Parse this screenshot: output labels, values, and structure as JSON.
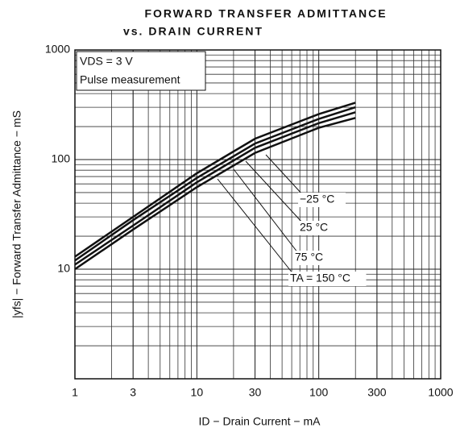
{
  "chart_data": {
    "type": "line",
    "title": "FORWARD TRANSFER ADMITTANCE",
    "subtitle": "vs. DRAIN CURRENT",
    "x_label": "ID − Drain Current − mA",
    "y_label": "|yfs| − Forward Transfer Admittance − mS",
    "annotations": [
      "VDS = 3 V",
      "Pulse measurement"
    ],
    "x": [
      1,
      3,
      10,
      30,
      100,
      200
    ],
    "series": [
      {
        "name": "−25 °C",
        "color": "#111111",
        "values": [
          13,
          30,
          75,
          155,
          260,
          330
        ]
      },
      {
        "name": "25 °C",
        "color": "#111111",
        "values": [
          12,
          28,
          68,
          140,
          235,
          300
        ]
      },
      {
        "name": "75 °C",
        "color": "#111111",
        "values": [
          11,
          25,
          62,
          128,
          215,
          270
        ]
      },
      {
        "name": "TA = 150 °C",
        "color": "#111111",
        "values": [
          10,
          23,
          56,
          115,
          195,
          240
        ]
      }
    ],
    "xlim": [
      1,
      1000
    ],
    "ylim": [
      1,
      1000
    ],
    "xticks": [
      1,
      3,
      10,
      30,
      100,
      300,
      1000
    ],
    "yticks": [
      10,
      100,
      1000
    ],
    "xscale": "log",
    "yscale": "log",
    "grid": true,
    "minor_grid": true
  }
}
